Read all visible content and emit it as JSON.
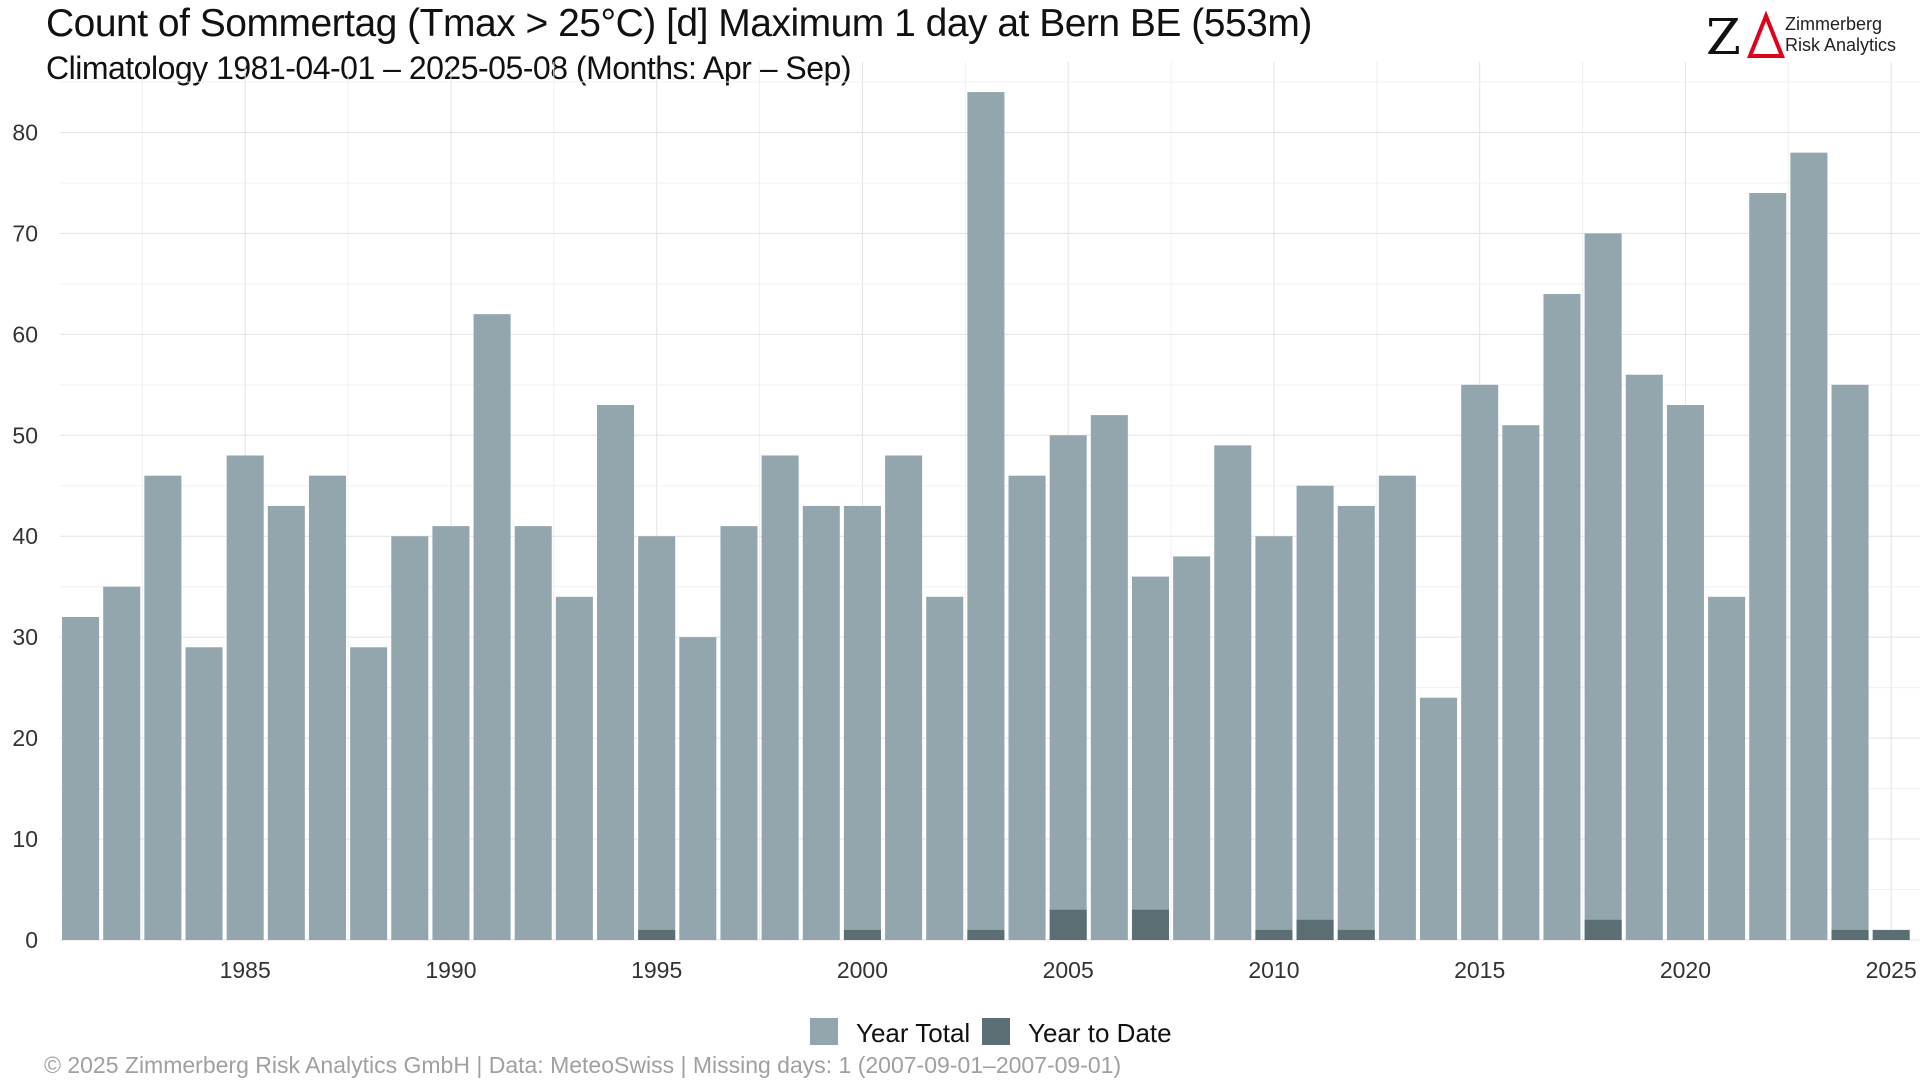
{
  "header": {
    "title": "Count of Sommertag (Tmax > 25°C) [d] Maximum 1 day at Bern  BE (553m)",
    "subtitle": "Climatology 1981-04-01 – 2025-05-08 (Months: Apr – Sep)"
  },
  "logo": {
    "mark": "ZΔ",
    "line1": "Zimmerberg",
    "line2": "Risk Analytics",
    "colors": {
      "z": "#111111",
      "delta": "#e0001a"
    }
  },
  "caption": "©  2025 Zimmerberg Risk Analytics GmbH | Data: MeteoSwiss | Missing days: 1 (2007-09-01–2007-09-01)",
  "chart_data": {
    "type": "bar",
    "x": [
      1981,
      1982,
      1983,
      1984,
      1985,
      1986,
      1987,
      1988,
      1989,
      1990,
      1991,
      1992,
      1993,
      1994,
      1995,
      1996,
      1997,
      1998,
      1999,
      2000,
      2001,
      2002,
      2003,
      2004,
      2005,
      2006,
      2007,
      2008,
      2009,
      2010,
      2011,
      2012,
      2013,
      2014,
      2015,
      2016,
      2017,
      2018,
      2019,
      2020,
      2021,
      2022,
      2023,
      2024,
      2025
    ],
    "series": [
      {
        "name": "Year Total",
        "color": "#93a6ad",
        "values": [
          32,
          35,
          46,
          29,
          48,
          43,
          46,
          29,
          40,
          41,
          62,
          41,
          34,
          53,
          40,
          30,
          41,
          48,
          43,
          43,
          48,
          34,
          84,
          46,
          50,
          52,
          36,
          38,
          49,
          40,
          45,
          43,
          46,
          24,
          55,
          51,
          64,
          70,
          56,
          53,
          34,
          74,
          78,
          55,
          0
        ]
      },
      {
        "name": "Year to Date",
        "color": "#5a6e74",
        "values": [
          0,
          0,
          0,
          0,
          0,
          0,
          0,
          0,
          0,
          0,
          0,
          0,
          0,
          0,
          1,
          0,
          0,
          0,
          0,
          1,
          0,
          0,
          1,
          0,
          3,
          0,
          3,
          0,
          0,
          1,
          2,
          1,
          0,
          0,
          0,
          0,
          0,
          2,
          0,
          0,
          0,
          0,
          0,
          1,
          1
        ]
      }
    ],
    "xticks": [
      1985,
      1990,
      1995,
      2000,
      2005,
      2010,
      2015,
      2020,
      2025
    ],
    "yticks": [
      0,
      10,
      20,
      30,
      40,
      50,
      60,
      70,
      80
    ],
    "ylim": [
      0,
      85
    ],
    "xlim": [
      1980.5,
      2025.7
    ],
    "grid": true,
    "legend": "bottom"
  }
}
